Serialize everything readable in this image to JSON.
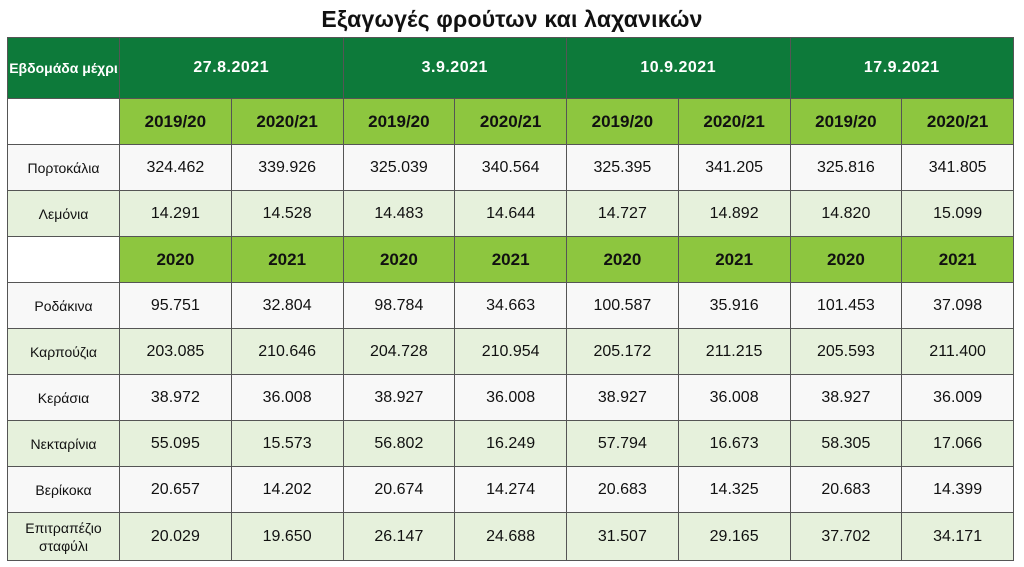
{
  "chart_data": {
    "type": "table",
    "title": "Εξαγωγές φρούτων και λαχανικών",
    "corner_label": "Εβδομάδα μέχρι",
    "weeks": [
      "27.8.2021",
      "3.9.2021",
      "10.9.2021",
      "17.9.2021"
    ],
    "sections": [
      {
        "periods": [
          "2019/20",
          "2020/21"
        ],
        "rows": [
          {
            "label": "Πορτοκάλια",
            "values": [
              "324.462",
              "339.926",
              "325.039",
              "340.564",
              "325.395",
              "341.205",
              "325.816",
              "341.805"
            ]
          },
          {
            "label": "Λεμόνια",
            "values": [
              "14.291",
              "14.528",
              "14.483",
              "14.644",
              "14.727",
              "14.892",
              "14.820",
              "15.099"
            ]
          }
        ]
      },
      {
        "periods": [
          "2020",
          "2021"
        ],
        "rows": [
          {
            "label": "Ροδάκινα",
            "values": [
              "95.751",
              "32.804",
              "98.784",
              "34.663",
              "100.587",
              "35.916",
              "101.453",
              "37.098"
            ]
          },
          {
            "label": "Καρπούζια",
            "values": [
              "203.085",
              "210.646",
              "204.728",
              "210.954",
              "205.172",
              "211.215",
              "205.593",
              "211.400"
            ]
          },
          {
            "label": "Κεράσια",
            "values": [
              "38.972",
              "36.008",
              "38.927",
              "36.008",
              "38.927",
              "36.008",
              "38.927",
              "36.009"
            ]
          },
          {
            "label": "Νεκταρίνια",
            "values": [
              "55.095",
              "15.573",
              "56.802",
              "16.249",
              "57.794",
              "16.673",
              "58.305",
              "17.066"
            ]
          },
          {
            "label": "Βερίκοκα",
            "values": [
              "20.657",
              "14.202",
              "20.674",
              "14.274",
              "20.683",
              "14.325",
              "20.683",
              "14.399"
            ]
          },
          {
            "label": "Επιτραπέζιο σταφύλι",
            "values": [
              "20.029",
              "19.650",
              "26.147",
              "24.688",
              "31.507",
              "29.165",
              "37.702",
              "34.171"
            ]
          }
        ]
      }
    ]
  },
  "colors": {
    "header_dark_green": "#0d7a3a",
    "header_light_green": "#8dc63f",
    "row_stripe": "#e6f1dc",
    "row_plain": "#f8f8f8"
  }
}
